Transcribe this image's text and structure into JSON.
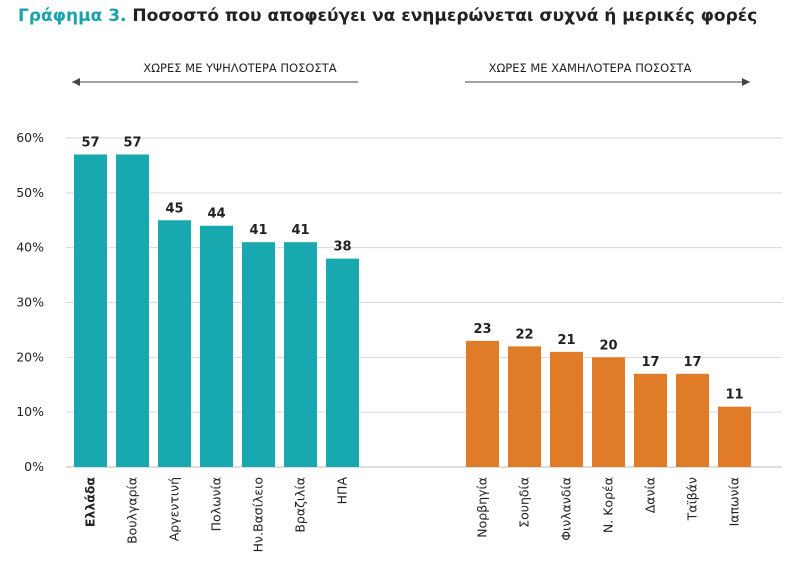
{
  "title": {
    "prefix": "Γράφημα 3.",
    "text": "Ποσοστό που αποφεύγει να ενημερώνεται συχνά ή μερικές φορές"
  },
  "sections": {
    "high_label": "ΧΩΡΕΣ ΜΕ ΥΨΗΛΟΤΕΡΑ ΠΟΣΟΣΤΑ",
    "low_label": "ΧΩΡΕΣ ΜΕ ΧΑΜΗΛΟΤΕΡΑ ΠΟΣΟΣΤΑ"
  },
  "colors": {
    "high": "#17a8b0",
    "low": "#e07b27",
    "title_accent": "#1aa3ad",
    "grid": "#d9d9d9"
  },
  "chart_data": {
    "type": "bar",
    "ylim": [
      0,
      60
    ],
    "yticks": [
      0,
      10,
      20,
      30,
      40,
      50,
      60
    ],
    "ytick_labels": [
      "0%",
      "10%",
      "20%",
      "30%",
      "40%",
      "50%",
      "60%"
    ],
    "grid": true,
    "series": [
      {
        "group": "high",
        "categories": [
          "Ελλάδα",
          "Βουλγαρία",
          "Αργεντινή",
          "Πολωνία",
          "Ην.Βασίλειο",
          "Βραζιλία",
          "ΗΠΑ"
        ],
        "values": [
          57,
          57,
          45,
          44,
          41,
          41,
          38
        ]
      },
      {
        "group": "low",
        "categories": [
          "Νορβηγία",
          "Σουηδία",
          "Φινλανδία",
          "Ν. Κορέα",
          "Δανία",
          "Ταϊβάν",
          "Ιαπωνία"
        ],
        "values": [
          23,
          22,
          21,
          20,
          17,
          17,
          11
        ]
      }
    ],
    "highlighted_category": "Ελλάδα"
  }
}
